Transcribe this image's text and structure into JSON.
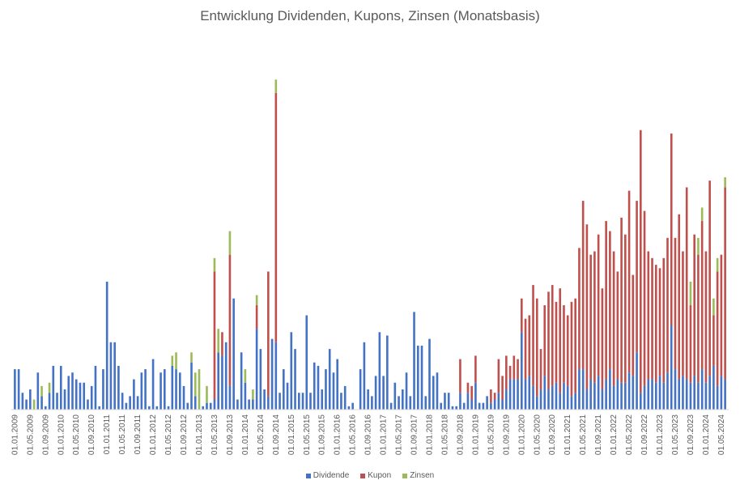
{
  "chart_data": {
    "type": "bar",
    "stacked": true,
    "title": "Entwicklung Dividenden, Kupons, Zinsen (Monatsbasis)",
    "xlabel": "",
    "ylabel": "",
    "ylim": [
      0,
      1
    ],
    "grid": false,
    "legend_position": "bottom",
    "tick_labels": [
      "01.01.2009",
      "01.05.2009",
      "01.09.2009",
      "01.01.2010",
      "01.05.2010",
      "01.09.2010",
      "01.01.2011",
      "01.05.2011",
      "01.09.2011",
      "01.01.2012",
      "01.05.2012",
      "01.09.2012",
      "01.01.2013",
      "01.05.2013",
      "01.09.2013",
      "01.01.2014",
      "01.05.2014",
      "01.09.2014",
      "01.01.2015",
      "01.05.2015",
      "01.09.2015",
      "01.01.2016",
      "01.05.2016",
      "01.09.2016",
      "01.01.2017",
      "01.05.2017",
      "01.09.2017",
      "01.01.2018",
      "01.05.2018",
      "01.09.2018",
      "01.01.2019",
      "01.05.2019",
      "01.09.2019",
      "01.01.2020",
      "01.05.2020",
      "01.09.2020",
      "01.01.2021",
      "01.05.2021",
      "01.09.2021",
      "01.01.2022",
      "01.05.2022",
      "01.09.2022",
      "01.01.2023",
      "01.05.2023",
      "01.09.2023",
      "01.01.2024",
      "01.05.2024"
    ],
    "series": [
      {
        "name": "Dividende",
        "color": "#4472C4",
        "values": [
          0.12,
          0.12,
          0.05,
          0.03,
          0.06,
          0,
          0.11,
          0.04,
          0.01,
          0.05,
          0.13,
          0.05,
          0.13,
          0.06,
          0.1,
          0.11,
          0.09,
          0.08,
          0.08,
          0.03,
          0.07,
          0.13,
          0.01,
          0.12,
          0.38,
          0.2,
          0.2,
          0.13,
          0.05,
          0.02,
          0.04,
          0.09,
          0.04,
          0.11,
          0.12,
          0.01,
          0.15,
          0.01,
          0.11,
          0.12,
          0.01,
          0.13,
          0.12,
          0.11,
          0.07,
          0.02,
          0.14,
          0.04,
          0,
          0.01,
          0.02,
          0.02,
          0.03,
          0.17,
          0.16,
          0.2,
          0.07,
          0.33,
          0.03,
          0.17,
          0.08,
          0.03,
          0.03,
          0.24,
          0.18,
          0.06,
          0.04,
          0.21,
          0.2,
          0.05,
          0.12,
          0.08,
          0.23,
          0.18,
          0.05,
          0.05,
          0.28,
          0.05,
          0.14,
          0.13,
          0.06,
          0.12,
          0.18,
          0.11,
          0.15,
          0.05,
          0.07,
          0.01,
          0.02,
          0.0,
          0.12,
          0.2,
          0.06,
          0.04,
          0.1,
          0.23,
          0.1,
          0.22,
          0.02,
          0.08,
          0.04,
          0.06,
          0.11,
          0.04,
          0.29,
          0.19,
          0.19,
          0.04,
          0.21,
          0.1,
          0.11,
          0.02,
          0.05,
          0.05,
          0.01,
          0.01,
          0.05,
          0.02,
          0.05,
          0.03,
          0.08,
          0.02,
          0.02,
          0.04,
          0.02,
          0.03,
          0.05,
          0.03,
          0.06,
          0.09,
          0.09,
          0.09,
          0.23,
          0.09,
          0.1,
          0.07,
          0.04,
          0.06,
          0.1,
          0.06,
          0.07,
          0.08,
          0.05,
          0.08,
          0.07,
          0.04,
          0.05,
          0.12,
          0.12,
          0.06,
          0.09,
          0.08,
          0.1,
          0.06,
          0.09,
          0.12,
          0.07,
          0.09,
          0.08,
          0.08,
          0.11,
          0.1,
          0.17,
          0.05,
          0.07,
          0.09,
          0.09,
          0.08,
          0.1,
          0.08,
          0.11,
          0.25,
          0.12,
          0.09,
          0.1,
          0.09,
          0.08,
          0.1,
          0.08,
          0.12,
          0.08,
          0.1,
          0.13,
          0.07,
          0.1,
          0.09,
          0.1,
          0.06,
          0.08,
          0.1,
          0.09,
          0.08,
          0.07,
          0.08,
          0.09,
          0.1,
          0.09,
          0.1
        ]
      },
      {
        "name": "Kupon",
        "color": "#C0504D",
        "values": []
      },
      {
        "name": "Zinsen",
        "color": "#9BBB59",
        "values": []
      }
    ]
  }
}
